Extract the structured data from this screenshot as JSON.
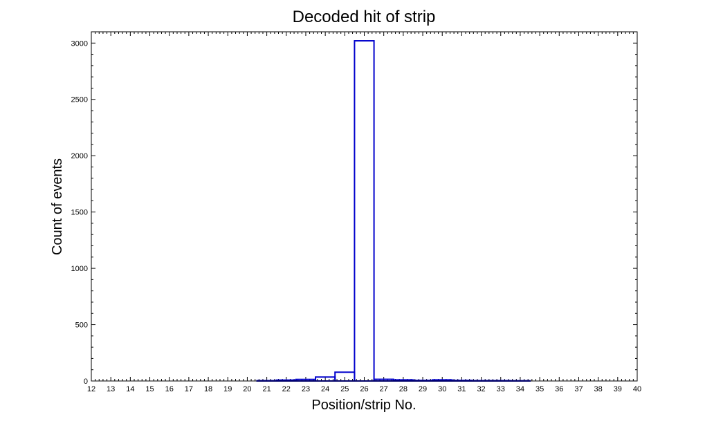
{
  "chart_data": {
    "type": "bar",
    "title": "Decoded hit of strip",
    "xlabel": "Position/strip No.",
    "ylabel": "Count of events",
    "xlim": [
      12,
      40
    ],
    "ylim": [
      0,
      3100
    ],
    "xticks": [
      "12",
      "13",
      "14",
      "15",
      "16",
      "17",
      "18",
      "19",
      "20",
      "21",
      "22",
      "23",
      "24",
      "25",
      "26",
      "27",
      "28",
      "29",
      "30",
      "31",
      "32",
      "33",
      "34",
      "35",
      "36",
      "37",
      "38",
      "39",
      "40"
    ],
    "yticks": [
      "0",
      "500",
      "1000",
      "1500",
      "2000",
      "2500",
      "3000"
    ],
    "bin_width": 1,
    "bin_offset": -0.5,
    "categories": [
      12,
      13,
      14,
      15,
      16,
      17,
      18,
      19,
      20,
      21,
      22,
      23,
      24,
      25,
      26,
      27,
      28,
      29,
      30,
      31,
      32,
      33,
      34,
      35,
      36,
      37,
      38,
      39
    ],
    "values": [
      0,
      0,
      0,
      0,
      0,
      0,
      0,
      0,
      0,
      3,
      8,
      14,
      35,
      78,
      3020,
      15,
      10,
      5,
      10,
      5,
      3,
      3,
      2,
      0,
      0,
      0,
      0,
      0
    ],
    "grid": false,
    "colors": {
      "bars": "#0000cc",
      "frame": "#000000"
    }
  }
}
